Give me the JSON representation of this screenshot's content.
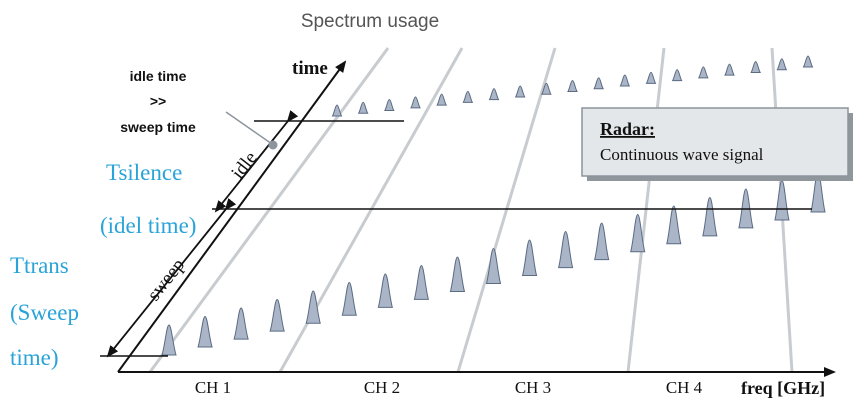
{
  "title": "Spectrum usage",
  "axis": {
    "time_label": "time",
    "freq_label": "freq [GHz]"
  },
  "channels": [
    "CH 1",
    "CH 2",
    "CH 3",
    "CH 4"
  ],
  "annotations": {
    "idle_time": "idle time",
    "much_greater": ">>",
    "sweep_time": "sweep time",
    "idle": "idle",
    "sweep": "sweep",
    "tsilence": "Tsilence",
    "idel_time": "(idel time)",
    "ttrans": "Ttrans",
    "sweep_paren": "(Sweep",
    "time_paren": "time)"
  },
  "radar_box": {
    "heading": "Radar:",
    "text": "Continuous wave signal"
  },
  "colors": {
    "pulse_fill": "#aab6c8",
    "pulse_stroke": "#5b6b82",
    "channel_line": "#c8ccd0",
    "callout_text": "#29a3d8",
    "box_fill": "#e4e7ea",
    "box_shadow": "#8f969c"
  }
}
